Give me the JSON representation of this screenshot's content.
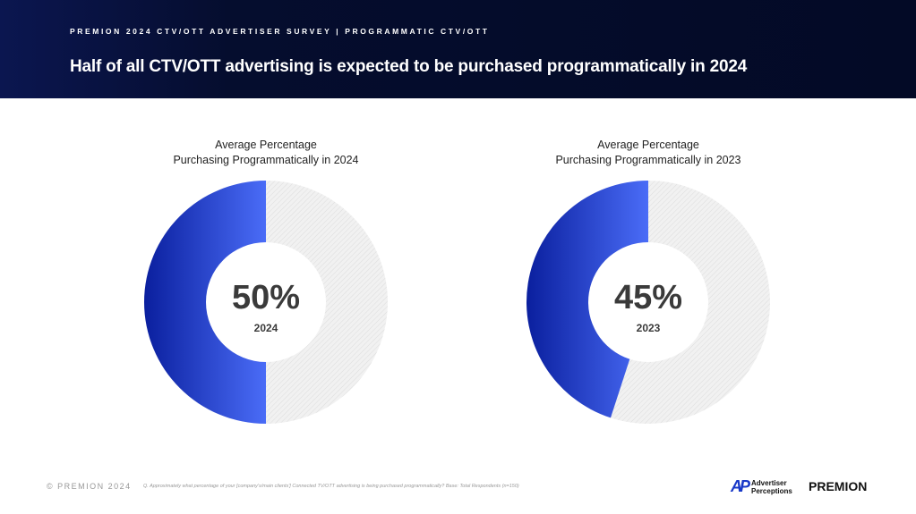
{
  "header": {
    "kicker": "PREMION 2024 CTV/OTT ADVERTISER SURVEY | PROGRAMMATIC CTV/OTT",
    "title": "Half of all CTV/OTT advertising is expected to be purchased programmatically in 2024"
  },
  "chart_data": [
    {
      "type": "pie",
      "variant": "donut",
      "title_line1": "Average Percentage",
      "title_line2": "Purchasing Programmatically in 2024",
      "value": 50,
      "label": "50%",
      "year": "2024",
      "colors": {
        "filled": "#3d5ef0",
        "remainder": "#eeeeee"
      }
    },
    {
      "type": "pie",
      "variant": "donut",
      "title_line1": "Average Percentage",
      "title_line2": "Purchasing Programmatically in 2023",
      "value": 45,
      "label": "45%",
      "year": "2023",
      "colors": {
        "filled": "#3d5ef0",
        "remainder": "#eeeeee"
      }
    }
  ],
  "footer": {
    "copyright": "© PREMION 2024",
    "note": "Q. Approximately what percentage of your [company's/main clients'] Connected TV/OTT advertising is being purchased programmatically? Base: Total Respondents (n=150)",
    "logo_ap_line1": "Advertiser",
    "logo_ap_line2": "Perceptions",
    "logo_premion": "PREMION"
  }
}
